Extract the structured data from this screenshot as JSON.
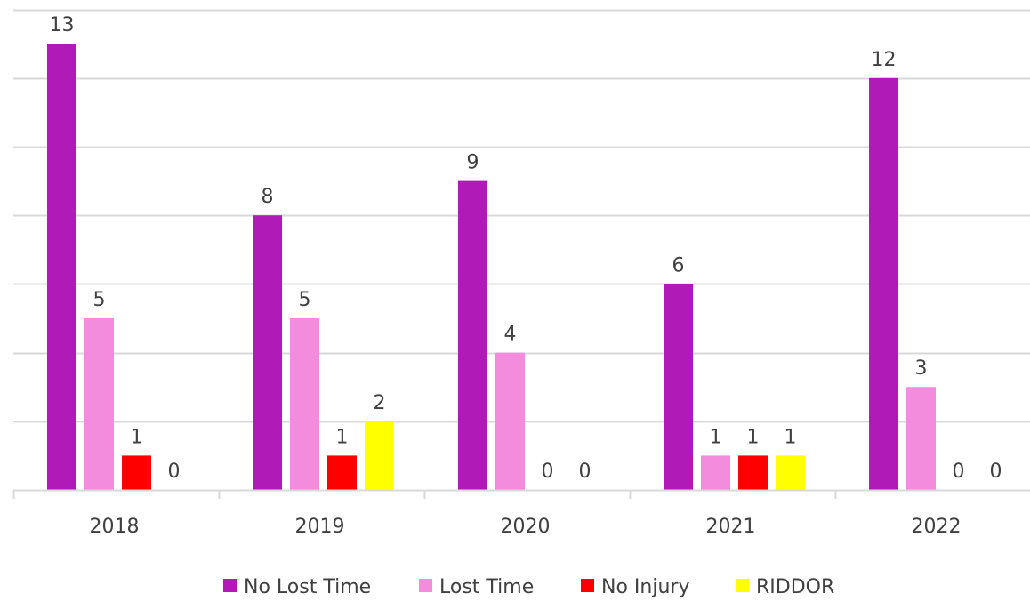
{
  "chart_data": {
    "type": "bar",
    "categories": [
      "2018",
      "2019",
      "2020",
      "2021",
      "2022"
    ],
    "series": [
      {
        "name": "No Lost Time",
        "color": "#B01AB7",
        "values": [
          13,
          8,
          9,
          6,
          12
        ]
      },
      {
        "name": "Lost Time",
        "color": "#F48CDE",
        "values": [
          5,
          5,
          4,
          1,
          3
        ]
      },
      {
        "name": "No Injury",
        "color": "#FF0000",
        "values": [
          1,
          1,
          0,
          1,
          0
        ]
      },
      {
        "name": "RIDDOR",
        "color": "#FFFF00",
        "values": [
          0,
          2,
          0,
          1,
          0
        ]
      }
    ],
    "title": "",
    "xlabel": "",
    "ylabel": "",
    "ylim": [
      0,
      14
    ],
    "grid": true,
    "legend_position": "bottom",
    "data_labels": true
  }
}
